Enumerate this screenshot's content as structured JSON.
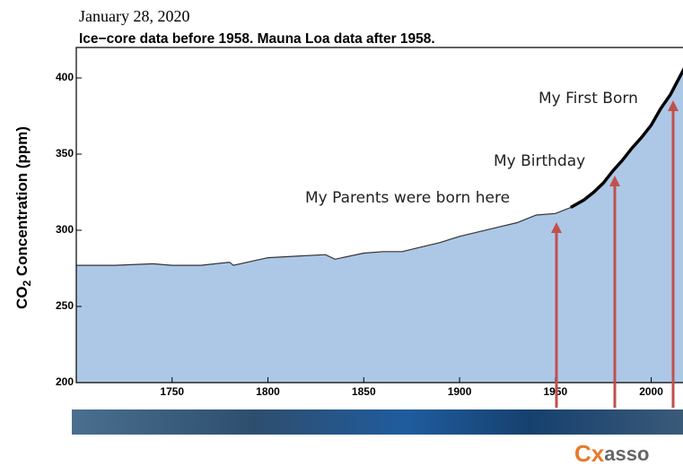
{
  "chart_data": {
    "type": "area",
    "date": "January 28, 2020",
    "title": "Ice−core data before 1958. Mauna Loa data after 1958.",
    "ylabel_parts": [
      "CO",
      "2",
      " Concentration (ppm)"
    ],
    "xlim": [
      1700,
      2018
    ],
    "ylim": [
      200,
      420
    ],
    "xticks": [
      1750,
      1800,
      1850,
      1900,
      1950,
      2000
    ],
    "yticks": [
      200,
      250,
      300,
      350,
      400
    ],
    "fill": "#adc8e6",
    "series": [
      {
        "color": "#333333",
        "x": [
          1700,
          1720,
          1740,
          1750,
          1765,
          1780,
          1782,
          1800,
          1815,
          1830,
          1835,
          1850,
          1860,
          1870,
          1880,
          1890,
          1900,
          1910,
          1920,
          1930,
          1940,
          1950,
          1958
        ],
        "values": [
          277,
          277,
          278,
          277,
          277,
          279,
          277,
          282,
          283,
          284,
          281,
          285,
          286,
          286,
          289,
          292,
          296,
          299,
          302,
          305,
          310,
          311,
          315
        ]
      },
      {
        "color": "#000000",
        "x": [
          1958,
          1965,
          1970,
          1975,
          1980,
          1985,
          1990,
          1995,
          2000,
          2005,
          2010,
          2015,
          2018
        ],
        "values": [
          315,
          320,
          325,
          331,
          339,
          346,
          354,
          361,
          369,
          380,
          389,
          401,
          408
        ]
      }
    ],
    "annotations": [
      "My Parents were born here",
      "My Birthday",
      "My First Born"
    ],
    "arrow_color": "#c0504d",
    "logo": [
      "Cx",
      "asso"
    ]
  }
}
